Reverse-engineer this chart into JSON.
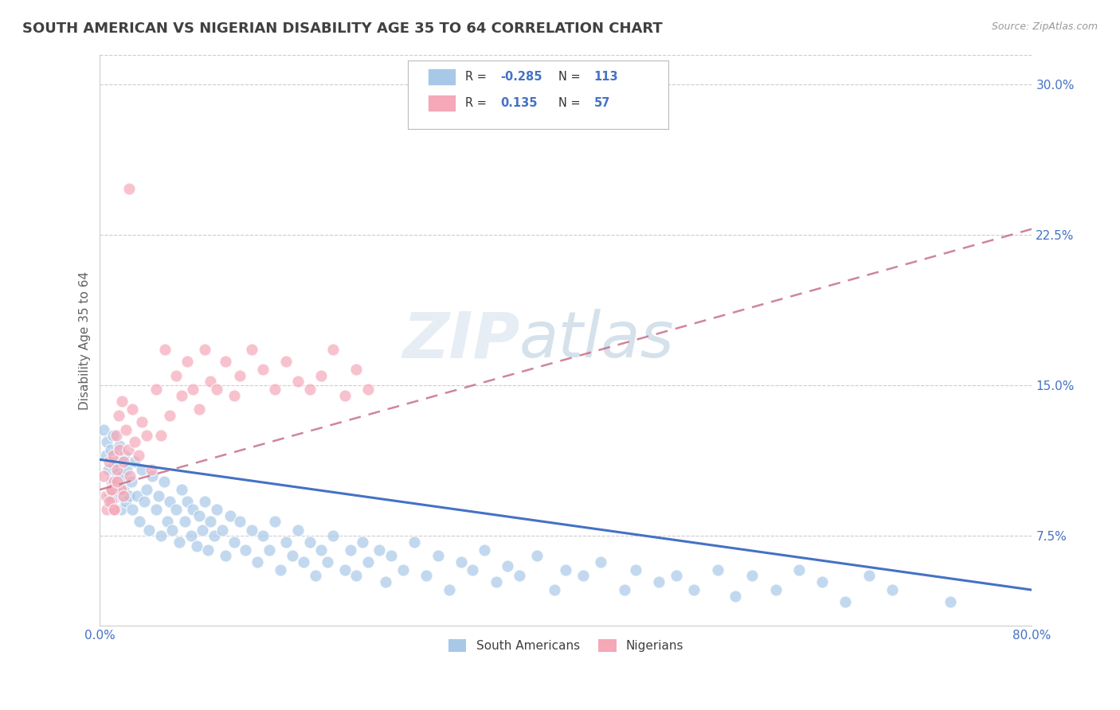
{
  "title": "SOUTH AMERICAN VS NIGERIAN DISABILITY AGE 35 TO 64 CORRELATION CHART",
  "source_text": "Source: ZipAtlas.com",
  "ylabel": "Disability Age 35 to 64",
  "xlim": [
    0.0,
    0.8
  ],
  "ylim": [
    0.03,
    0.315
  ],
  "xticks": [
    0.0,
    0.1,
    0.2,
    0.3,
    0.4,
    0.5,
    0.6,
    0.7,
    0.8
  ],
  "xticklabels": [
    "0.0%",
    "",
    "",
    "",
    "",
    "",
    "",
    "",
    "80.0%"
  ],
  "ytick_positions": [
    0.075,
    0.15,
    0.225,
    0.3
  ],
  "ytick_labels": [
    "7.5%",
    "15.0%",
    "22.5%",
    "30.0%"
  ],
  "blue_color": "#a8c8e8",
  "pink_color": "#f4a8b8",
  "blue_line_color": "#4472c4",
  "pink_line_color": "#c8708a",
  "title_color": "#404040",
  "title_fontsize": 13,
  "axis_label_color": "#606060",
  "tick_label_color": "#4472c4",
  "watermark": "ZIPatlas",
  "blue_trend_x0": 0.0,
  "blue_trend_y0": 0.113,
  "blue_trend_x1": 0.8,
  "blue_trend_y1": 0.048,
  "pink_trend_x0": 0.0,
  "pink_trend_y0": 0.098,
  "pink_trend_x1": 0.8,
  "pink_trend_y1": 0.228,
  "south_american_x": [
    0.003,
    0.005,
    0.006,
    0.007,
    0.008,
    0.009,
    0.01,
    0.011,
    0.012,
    0.013,
    0.014,
    0.015,
    0.016,
    0.017,
    0.018,
    0.019,
    0.02,
    0.021,
    0.022,
    0.023,
    0.025,
    0.027,
    0.028,
    0.03,
    0.032,
    0.034,
    0.036,
    0.038,
    0.04,
    0.042,
    0.045,
    0.048,
    0.05,
    0.052,
    0.055,
    0.058,
    0.06,
    0.062,
    0.065,
    0.068,
    0.07,
    0.073,
    0.075,
    0.078,
    0.08,
    0.083,
    0.085,
    0.088,
    0.09,
    0.093,
    0.095,
    0.098,
    0.1,
    0.105,
    0.108,
    0.112,
    0.115,
    0.12,
    0.125,
    0.13,
    0.135,
    0.14,
    0.145,
    0.15,
    0.155,
    0.16,
    0.165,
    0.17,
    0.175,
    0.18,
    0.185,
    0.19,
    0.195,
    0.2,
    0.21,
    0.215,
    0.22,
    0.225,
    0.23,
    0.24,
    0.245,
    0.25,
    0.26,
    0.27,
    0.28,
    0.29,
    0.3,
    0.31,
    0.32,
    0.33,
    0.34,
    0.35,
    0.36,
    0.375,
    0.39,
    0.4,
    0.415,
    0.43,
    0.45,
    0.46,
    0.48,
    0.495,
    0.51,
    0.53,
    0.545,
    0.56,
    0.58,
    0.6,
    0.62,
    0.64,
    0.66,
    0.68,
    0.73
  ],
  "south_american_y": [
    0.128,
    0.115,
    0.122,
    0.108,
    0.095,
    0.118,
    0.102,
    0.125,
    0.11,
    0.098,
    0.112,
    0.106,
    0.095,
    0.12,
    0.088,
    0.105,
    0.098,
    0.115,
    0.092,
    0.108,
    0.095,
    0.102,
    0.088,
    0.112,
    0.095,
    0.082,
    0.108,
    0.092,
    0.098,
    0.078,
    0.105,
    0.088,
    0.095,
    0.075,
    0.102,
    0.082,
    0.092,
    0.078,
    0.088,
    0.072,
    0.098,
    0.082,
    0.092,
    0.075,
    0.088,
    0.07,
    0.085,
    0.078,
    0.092,
    0.068,
    0.082,
    0.075,
    0.088,
    0.078,
    0.065,
    0.085,
    0.072,
    0.082,
    0.068,
    0.078,
    0.062,
    0.075,
    0.068,
    0.082,
    0.058,
    0.072,
    0.065,
    0.078,
    0.062,
    0.072,
    0.055,
    0.068,
    0.062,
    0.075,
    0.058,
    0.068,
    0.055,
    0.072,
    0.062,
    0.068,
    0.052,
    0.065,
    0.058,
    0.072,
    0.055,
    0.065,
    0.048,
    0.062,
    0.058,
    0.068,
    0.052,
    0.06,
    0.055,
    0.065,
    0.048,
    0.058,
    0.055,
    0.062,
    0.048,
    0.058,
    0.052,
    0.055,
    0.048,
    0.058,
    0.045,
    0.055,
    0.048,
    0.058,
    0.052,
    0.042,
    0.055,
    0.048,
    0.042
  ],
  "nigerian_x": [
    0.003,
    0.005,
    0.006,
    0.008,
    0.009,
    0.01,
    0.011,
    0.012,
    0.013,
    0.014,
    0.015,
    0.016,
    0.017,
    0.018,
    0.019,
    0.02,
    0.022,
    0.024,
    0.026,
    0.028,
    0.03,
    0.033,
    0.036,
    0.04,
    0.044,
    0.048,
    0.052,
    0.056,
    0.06,
    0.065,
    0.07,
    0.075,
    0.08,
    0.085,
    0.09,
    0.095,
    0.1,
    0.108,
    0.115,
    0.12,
    0.13,
    0.14,
    0.15,
    0.16,
    0.17,
    0.18,
    0.19,
    0.2,
    0.21,
    0.22,
    0.23,
    0.008,
    0.01,
    0.012,
    0.015,
    0.02,
    0.025
  ],
  "nigerian_y": [
    0.105,
    0.095,
    0.088,
    0.112,
    0.098,
    0.092,
    0.115,
    0.102,
    0.088,
    0.125,
    0.108,
    0.135,
    0.118,
    0.098,
    0.142,
    0.112,
    0.128,
    0.118,
    0.105,
    0.138,
    0.122,
    0.115,
    0.132,
    0.125,
    0.108,
    0.148,
    0.125,
    0.168,
    0.135,
    0.155,
    0.145,
    0.162,
    0.148,
    0.138,
    0.168,
    0.152,
    0.148,
    0.162,
    0.145,
    0.155,
    0.168,
    0.158,
    0.148,
    0.162,
    0.152,
    0.148,
    0.155,
    0.168,
    0.145,
    0.158,
    0.148,
    0.092,
    0.098,
    0.088,
    0.102,
    0.095,
    0.248
  ]
}
